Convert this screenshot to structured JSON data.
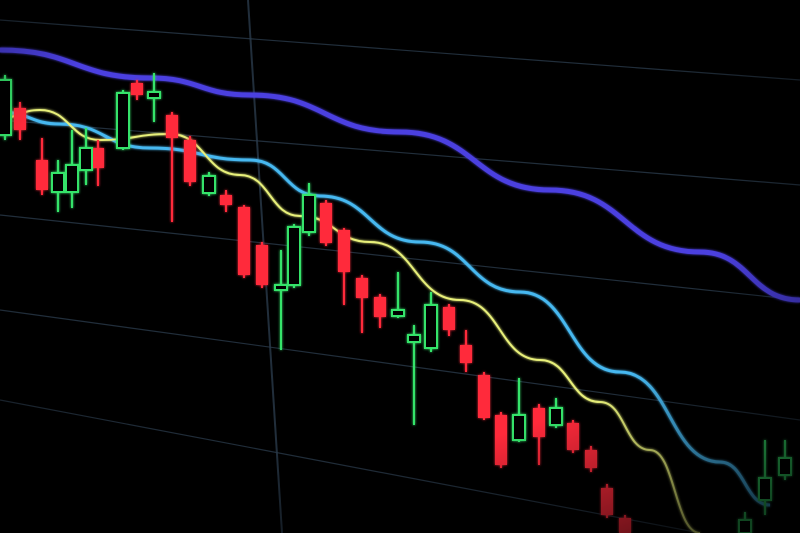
{
  "scene": {
    "subject": "candlestick-chart-on-screen",
    "colors": {
      "background": "#000000",
      "grid": "#2a3a4a",
      "bearish_candle": "#ff2a3a",
      "bullish_candle": "#35e36a",
      "ma_long": "#4b3fe0",
      "ma_mid": "#46b8f0",
      "ma_short": "#e8f07a"
    }
  }
}
